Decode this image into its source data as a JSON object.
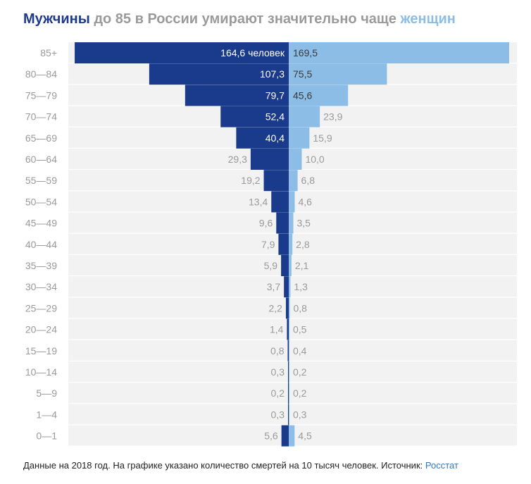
{
  "title": {
    "men_word": "Мужчины",
    "middle": " до 85 в России умирают значительно чаще ",
    "women_word": "женщин"
  },
  "colors": {
    "men": "#1a3a8c",
    "women": "#8bbde6",
    "grey_text": "#9a9a9a",
    "band": "#f2f2f2",
    "source_link": "#2f78c4"
  },
  "chart_data": {
    "type": "bar",
    "orientation": "horizontal-pyramid",
    "unit_note": "смертей на 10 тысяч человек",
    "categories": [
      "85+",
      "80—84",
      "75—79",
      "70—74",
      "65—69",
      "60—64",
      "55—59",
      "50—54",
      "45—49",
      "40—44",
      "35—39",
      "30—34",
      "25—29",
      "20—24",
      "15—19",
      "10—14",
      "5—9",
      "1—4",
      "0—1"
    ],
    "series": [
      {
        "name": "Мужчины",
        "values": [
          164.6,
          107.3,
          79.7,
          52.4,
          40.4,
          29.3,
          19.2,
          13.4,
          9.6,
          7.9,
          5.9,
          3.7,
          2.2,
          1.4,
          0.8,
          0.3,
          0.2,
          0.3,
          5.6
        ],
        "labels": [
          "164,6 человек",
          "107,3",
          "79,7",
          "52,4",
          "40,4",
          "29,3",
          "19,2",
          "13,4",
          "9,6",
          "7,9",
          "5,9",
          "3,7",
          "2,2",
          "1,4",
          "0,8",
          "0,3",
          "0,2",
          "0,3",
          "5,6"
        ]
      },
      {
        "name": "Женщины",
        "values": [
          169.5,
          75.5,
          45.6,
          23.9,
          15.9,
          10.0,
          6.8,
          4.6,
          3.5,
          2.8,
          2.1,
          1.3,
          0.8,
          0.5,
          0.4,
          0.2,
          0.2,
          0.3,
          4.5
        ],
        "labels": [
          "169,5",
          "75,5",
          "45,6",
          "23,9",
          "15,9",
          "10,0",
          "6,8",
          "4,6",
          "3,5",
          "2,8",
          "2,1",
          "1,3",
          "0,8",
          "0,5",
          "0,4",
          "0,2",
          "0,2",
          "0,3",
          "4,5"
        ]
      }
    ],
    "xlim": [
      0,
      169.5
    ],
    "grid": false,
    "legend": "in-title"
  },
  "footer": {
    "text": "Данные на 2018 год. На графике указано количество смертей на 10 тысяч человек. Источник: ",
    "source": "Росстат"
  }
}
